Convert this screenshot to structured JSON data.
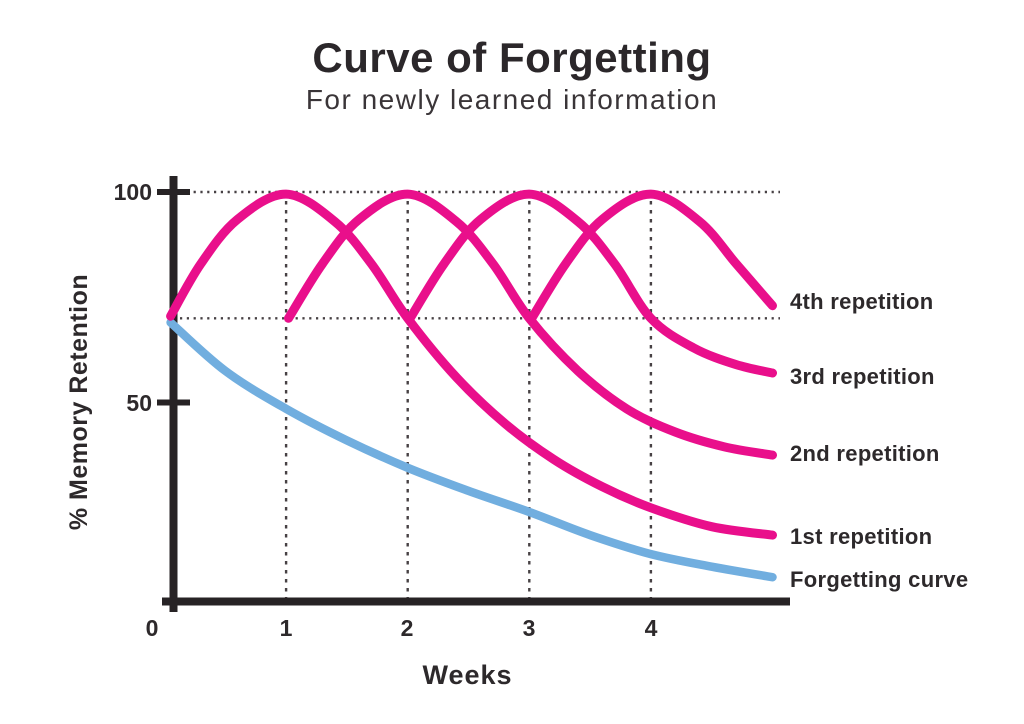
{
  "chart_data": {
    "type": "line",
    "title": "Curve of Forgetting",
    "subtitle": "For newly learned information",
    "xlabel": "Weeks",
    "ylabel": "% Memory Retention",
    "xlim": [
      0,
      5
    ],
    "ylim": [
      0,
      105
    ],
    "x_ticks": [
      0,
      1,
      2,
      3,
      4
    ],
    "y_ticks": [
      100,
      50
    ],
    "x_tick_labels": [
      "0",
      "1",
      "2",
      "3",
      "4"
    ],
    "y_tick_labels": [
      "100",
      "50"
    ],
    "grid": {
      "horizontal_dotted_at_pct": [
        100,
        70
      ],
      "vertical_dashed_at_week": [
        1,
        2,
        3,
        4
      ]
    },
    "legend_position": "right-of-curve-ends",
    "colors": {
      "repetition": "#E90F8B",
      "forgetting": "#71AEDF",
      "axis": "#272325",
      "grid": "#474144",
      "text": "#2D292B"
    },
    "series": [
      {
        "name": "Forgetting curve",
        "color_key": "forgetting",
        "points": [
          [
            0.05,
            69
          ],
          [
            0.5,
            57.5
          ],
          [
            1,
            48.5
          ],
          [
            1.5,
            41
          ],
          [
            2,
            34.5
          ],
          [
            2.5,
            29
          ],
          [
            3,
            24
          ],
          [
            3.5,
            18.5
          ],
          [
            4,
            14
          ],
          [
            4.5,
            11
          ],
          [
            5,
            8.5
          ]
        ]
      },
      {
        "name": "1st repetition",
        "color_key": "repetition",
        "points": [
          [
            0.05,
            70.5
          ],
          [
            0.3,
            83
          ],
          [
            0.6,
            93.5
          ],
          [
            1,
            99.5
          ],
          [
            1.4,
            93
          ],
          [
            1.7,
            83
          ],
          [
            2,
            70
          ],
          [
            2.4,
            56
          ],
          [
            2.8,
            45
          ],
          [
            3.2,
            36.5
          ],
          [
            3.6,
            30
          ],
          [
            4,
            25
          ],
          [
            4.5,
            20.5
          ],
          [
            5,
            18.5
          ]
        ]
      },
      {
        "name": "2nd repetition",
        "color_key": "repetition",
        "points": [
          [
            1.02,
            70
          ],
          [
            1.3,
            83
          ],
          [
            1.6,
            93.5
          ],
          [
            2,
            99.5
          ],
          [
            2.4,
            93
          ],
          [
            2.7,
            83
          ],
          [
            3,
            70
          ],
          [
            3.4,
            57.5
          ],
          [
            3.8,
            48.5
          ],
          [
            4.2,
            43
          ],
          [
            4.6,
            39.5
          ],
          [
            5,
            37.5
          ]
        ]
      },
      {
        "name": "3rd repetition",
        "color_key": "repetition",
        "points": [
          [
            2.02,
            70
          ],
          [
            2.3,
            83
          ],
          [
            2.6,
            93.5
          ],
          [
            3,
            99.5
          ],
          [
            3.4,
            93
          ],
          [
            3.7,
            83
          ],
          [
            4,
            70
          ],
          [
            4.35,
            63
          ],
          [
            4.7,
            59
          ],
          [
            5,
            57
          ]
        ]
      },
      {
        "name": "4th repetition",
        "color_key": "repetition",
        "points": [
          [
            3.02,
            70
          ],
          [
            3.3,
            83
          ],
          [
            3.6,
            93.5
          ],
          [
            4,
            99.5
          ],
          [
            4.4,
            93
          ],
          [
            4.7,
            83
          ],
          [
            5,
            73
          ]
        ]
      }
    ]
  }
}
